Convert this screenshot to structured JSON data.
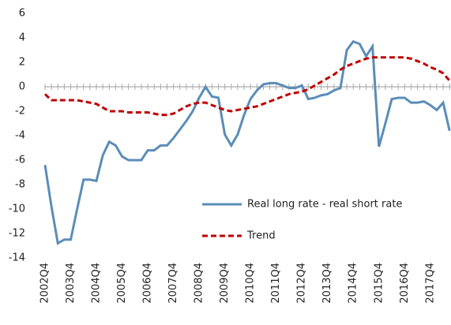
{
  "chart_data": {
    "type": "line",
    "categories": [
      "2002Q4",
      null,
      null,
      null,
      "2003Q4",
      null,
      null,
      null,
      "2004Q4",
      null,
      null,
      null,
      "2005Q4",
      null,
      null,
      null,
      "2006Q4",
      null,
      null,
      null,
      "2007Q4",
      null,
      null,
      null,
      "2008Q4",
      null,
      null,
      null,
      "2009Q4",
      null,
      null,
      null,
      "2010Q4",
      null,
      null,
      null,
      "2011Q4",
      null,
      null,
      null,
      "2012Q4",
      null,
      null,
      null,
      "2013Q4",
      null,
      null,
      null,
      "2014Q4",
      null,
      null,
      null,
      "2015Q4",
      null,
      null,
      null,
      "2016Q4",
      null,
      null,
      null,
      "2017Q4",
      null,
      null,
      null
    ],
    "series": [
      {
        "name": "Real long rate - real short rate",
        "color": "#5b8db8",
        "dash": false,
        "values": [
          -6.4,
          -9.8,
          -12.8,
          -12.5,
          -12.5,
          -10,
          -7.6,
          -7.6,
          -7.7,
          -5.6,
          -4.5,
          -4.8,
          -5.7,
          -6,
          -6,
          -6,
          -5.2,
          -5.2,
          -4.8,
          -4.8,
          -4.2,
          -3.5,
          -2.8,
          -2,
          -0.9,
          0,
          -0.8,
          -0.9,
          -3.9,
          -4.8,
          -3.9,
          -2.3,
          -1,
          -0.3,
          0.2,
          0.3,
          0.3,
          0.1,
          -0.1,
          -0.1,
          0.1,
          -1,
          -0.9,
          -0.7,
          -0.6,
          -0.3,
          -0.1,
          3,
          3.7,
          3.5,
          2.5,
          3.3,
          -4.9,
          -3,
          -1,
          -0.9,
          -0.9,
          -1.3,
          -1.3,
          -1.2,
          -1.5,
          -1.9,
          -1.3,
          -3.6
        ]
      },
      {
        "name": "Trend",
        "color": "#c00000",
        "dash": true,
        "values": [
          -0.6,
          -1.1,
          -1.1,
          -1.1,
          -1.1,
          -1.1,
          -1.2,
          -1.3,
          -1.4,
          -1.7,
          -2,
          -2,
          -2,
          -2.1,
          -2.1,
          -2.1,
          -2.1,
          -2.2,
          -2.3,
          -2.3,
          -2.2,
          -1.9,
          -1.6,
          -1.4,
          -1.3,
          -1.3,
          -1.5,
          -1.7,
          -1.9,
          -2,
          -1.9,
          -1.8,
          -1.7,
          -1.6,
          -1.4,
          -1.2,
          -1,
          -0.8,
          -0.6,
          -0.5,
          -0.4,
          -0.2,
          0.1,
          0.4,
          0.7,
          1,
          1.4,
          1.7,
          1.9,
          2.1,
          2.3,
          2.4,
          2.4,
          2.4,
          2.4,
          2.4,
          2.4,
          2.3,
          2.1,
          1.9,
          1.6,
          1.4,
          1.1,
          0.5
        ]
      }
    ],
    "ylim": [
      -14,
      6
    ],
    "yticks": [
      -14,
      -12,
      -10,
      -8,
      -6,
      -4,
      -2,
      0,
      2,
      4,
      6
    ]
  }
}
